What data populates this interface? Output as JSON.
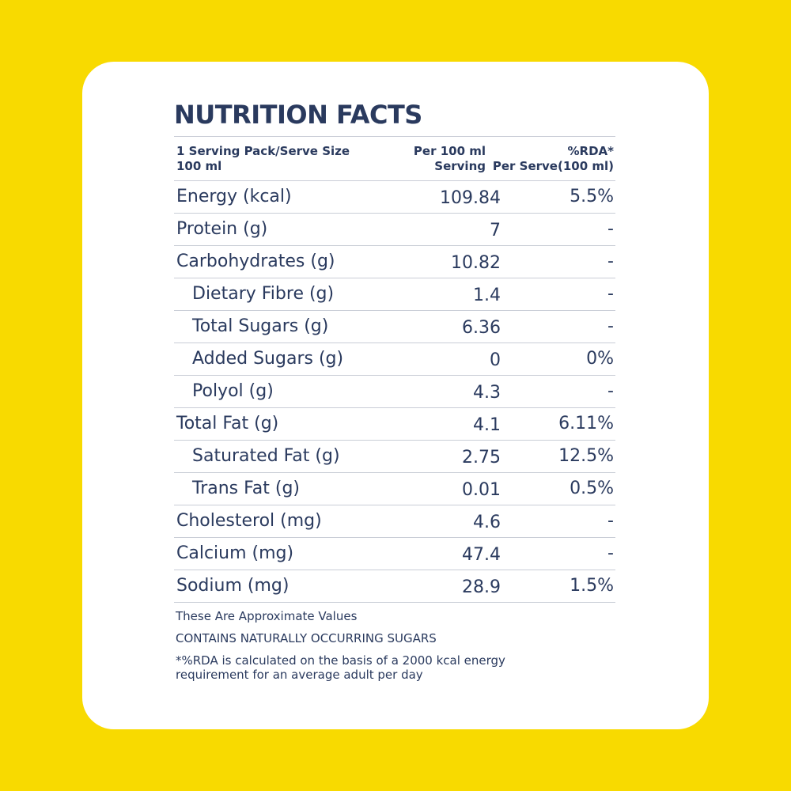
{
  "title": "NUTRITION FACTS",
  "header": {
    "col1_line1": "1 Serving Pack/Serve Size",
    "col1_line2": "100 ml",
    "col2_line1": "Per 100 ml",
    "col2_line2": "Serving",
    "col3_line1": "%RDA*",
    "col3_line2": "Per Serve(100 ml)"
  },
  "rows": [
    {
      "name": "Energy (kcal)",
      "value": "109.84",
      "rda": "5.5%"
    },
    {
      "name": "Protein (g)",
      "value": "7",
      "rda": "-"
    },
    {
      "name": "Carbohydrates (g)",
      "value": "10.82",
      "rda": "-"
    },
    {
      "name": "Dietary Fibre (g)",
      "value": "1.4",
      "rda": "-"
    },
    {
      "name": "Total Sugars (g)",
      "value": "6.36",
      "rda": "-"
    },
    {
      "name": "Added Sugars (g)",
      "value": "0",
      "rda": "0%"
    },
    {
      "name": "Polyol (g)",
      "value": "4.3",
      "rda": "-"
    },
    {
      "name": "Total Fat (g)",
      "value": "4.1",
      "rda": "6.11%"
    },
    {
      "name": "Saturated Fat (g)",
      "value": "2.75",
      "rda": "12.5%"
    },
    {
      "name": "Trans Fat (g)",
      "value": "0.01",
      "rda": "0.5%"
    },
    {
      "name": "Cholesterol (mg)",
      "value": "4.6",
      "rda": "-"
    },
    {
      "name": "Calcium (mg)",
      "value": "47.4",
      "rda": "-"
    },
    {
      "name": "Sodium (mg)",
      "value": "28.9",
      "rda": "1.5%"
    }
  ],
  "notes": {
    "approx": "These Are Approximate Values",
    "sugars": "CONTAINS NATURALLY OCCURRING SUGARS",
    "rda_line1": "*%RDA is calculated on the basis of a 2000 kcal energy",
    "rda_line2": "requirement for an average adult per day"
  },
  "colors": {
    "background": "#F8DA00",
    "card": "#FFFFFF",
    "text": "#2A3A5E",
    "rule": "#C9CDD6"
  }
}
